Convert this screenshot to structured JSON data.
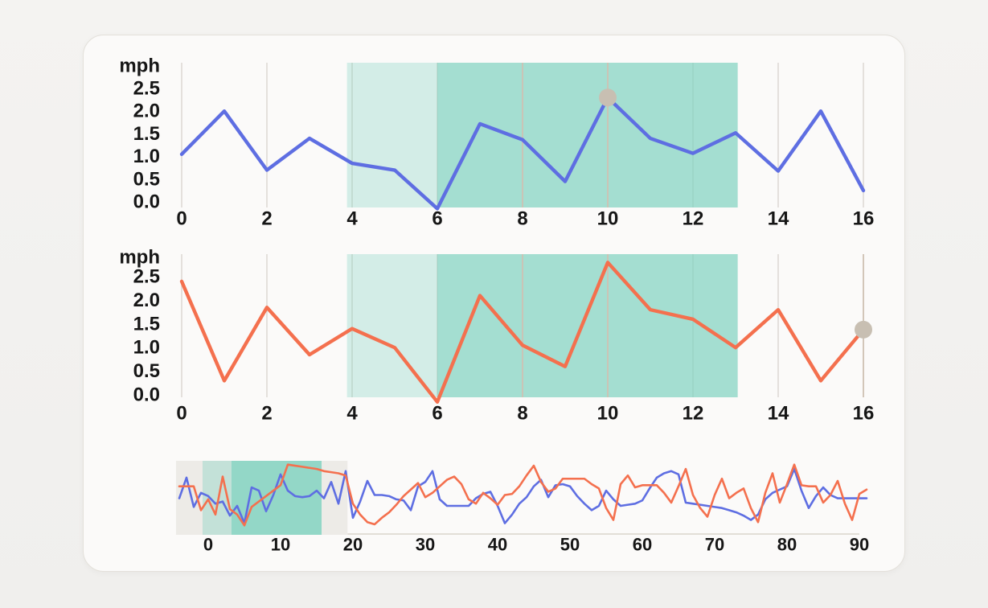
{
  "page": {
    "background": "#f1f0ee",
    "card_background": "#fbfaf9",
    "card_border": "#e3e0da"
  },
  "colors": {
    "blue": "#5e6ee2",
    "orange": "#f4704e",
    "band_teal_rgb": "127,210,192",
    "gridline": "#dcd8d2",
    "emphasis_line": "#cfc2b4",
    "marker_dot": "#c8bfb2",
    "brush_window": "#edebe7",
    "axis_line": "#d9d4cc",
    "text": "#161616"
  },
  "chart_data": [
    {
      "id": "speed-chart-1",
      "type": "line",
      "unit_label": "mph",
      "y_ticks": [
        "2.5",
        "2.0",
        "1.5",
        "1.0",
        "0.5",
        "0.0"
      ],
      "x_ticks": [
        0,
        2,
        4,
        6,
        8,
        10,
        12,
        14,
        16
      ],
      "ylim": [
        0,
        3
      ],
      "grid": "vertical",
      "x_start": 0,
      "series": [
        {
          "name": "speed-blue",
          "color_key": "blue",
          "values": [
            1.05,
            2.0,
            0.7,
            1.4,
            0.85,
            0.7,
            -0.15,
            1.72,
            1.37,
            0.45,
            2.3,
            1.4,
            1.07,
            1.52,
            0.68,
            2.0,
            0.25
          ]
        }
      ],
      "highlight_bands": [
        {
          "kind": "light",
          "from": 3.88,
          "to": 6.0,
          "opacity": 0.32
        },
        {
          "kind": "dark",
          "from": 6.0,
          "to": 13.05,
          "opacity": 0.7
        }
      ],
      "emphasis_gridlines": [
        8,
        10
      ],
      "marker": {
        "x": 10,
        "value": 2.3
      }
    },
    {
      "id": "speed-chart-2",
      "type": "line",
      "unit_label": "mph",
      "y_ticks": [
        "2.5",
        "2.0",
        "1.5",
        "1.0",
        "0.5",
        "0.0"
      ],
      "x_ticks": [
        0,
        2,
        4,
        6,
        8,
        10,
        12,
        14,
        16
      ],
      "ylim": [
        0,
        3
      ],
      "grid": "vertical",
      "x_start": 0,
      "series": [
        {
          "name": "speed-orange",
          "color_key": "orange",
          "values": [
            2.4,
            0.3,
            1.85,
            0.85,
            1.4,
            1.0,
            -0.15,
            2.1,
            1.05,
            0.6,
            2.8,
            1.8,
            1.6,
            1.0,
            1.8,
            0.3,
            1.38
          ]
        }
      ],
      "highlight_bands": [
        {
          "kind": "light",
          "from": 3.88,
          "to": 6.0,
          "opacity": 0.32
        },
        {
          "kind": "dark",
          "from": 6.0,
          "to": 13.05,
          "opacity": 0.7
        }
      ],
      "emphasis_gridlines": [
        8,
        10,
        16
      ],
      "marker": {
        "x": 16,
        "value": 1.38
      }
    },
    {
      "id": "overview-chart",
      "type": "line",
      "x_ticks": [
        0,
        10,
        20,
        30,
        40,
        50,
        60,
        70,
        80,
        90
      ],
      "ylim": [
        0,
        3
      ],
      "x_start": -4,
      "brush_window": {
        "from": -4.45,
        "to": 19.25
      },
      "highlight_bands": [
        {
          "kind": "light",
          "from": -0.78,
          "to": 3.22,
          "opacity": 0.38
        },
        {
          "kind": "dark",
          "from": 3.22,
          "to": 15.67,
          "opacity": 0.82
        }
      ],
      "series": [
        {
          "name": "overview-blue",
          "color_key": "blue",
          "values": [
            1.35,
            2.3,
            0.95,
            1.6,
            1.45,
            1.1,
            1.2,
            0.55,
            1.0,
            0.2,
            1.85,
            1.7,
            0.75,
            1.5,
            2.45,
            1.7,
            1.45,
            1.4,
            1.45,
            1.7,
            1.35,
            2.1,
            1.1,
            2.6,
            0.45,
            1.2,
            2.15,
            1.5,
            1.5,
            1.45,
            1.3,
            1.25,
            0.8,
            1.9,
            2.1,
            2.6,
            1.3,
            1.0,
            1.0,
            1.0,
            1.0,
            1.35,
            1.55,
            1.65,
            1.0,
            0.2,
            0.6,
            1.1,
            1.4,
            1.9,
            2.2,
            1.4,
            1.95,
            2.0,
            1.9,
            1.45,
            1.1,
            0.8,
            1.0,
            1.7,
            1.3,
            1.0,
            1.05,
            1.1,
            1.25,
            1.8,
            2.3,
            2.5,
            2.6,
            2.45,
            1.15,
            1.1,
            1.05,
            1.0,
            0.95,
            0.9,
            0.8,
            0.7,
            0.55,
            0.35,
            0.6,
            1.3,
            1.6,
            1.75,
            1.9,
            2.7,
            1.7,
            0.9,
            1.45,
            1.85,
            1.5,
            1.35,
            1.35,
            1.35,
            1.35,
            1.35
          ]
        },
        {
          "name": "overview-orange",
          "color_key": "orange",
          "values": [
            1.9,
            1.9,
            1.9,
            0.8,
            1.3,
            0.6,
            2.35,
            0.85,
            0.6,
            0.1,
            0.95,
            1.2,
            1.45,
            1.7,
            1.95,
            2.9,
            2.85,
            2.8,
            2.75,
            2.7,
            2.6,
            2.55,
            2.5,
            2.4,
            1.1,
            0.6,
            0.25,
            0.15,
            0.45,
            0.7,
            1.05,
            1.45,
            1.75,
            2.05,
            1.4,
            1.6,
            1.9,
            2.2,
            2.35,
            2.0,
            1.3,
            1.1,
            1.6,
            1.35,
            1.05,
            1.5,
            1.55,
            1.9,
            2.4,
            2.85,
            2.1,
            1.65,
            1.8,
            2.25,
            2.25,
            2.25,
            2.25,
            2.0,
            1.8,
            0.9,
            0.35,
            2.0,
            2.4,
            1.85,
            1.95,
            1.95,
            1.95,
            1.6,
            1.15,
            1.9,
            2.7,
            1.5,
            0.9,
            0.5,
            1.5,
            2.25,
            1.35,
            1.6,
            1.8,
            0.9,
            0.25,
            1.6,
            2.5,
            1.15,
            2.0,
            2.9,
            1.95,
            1.9,
            1.9,
            1.15,
            1.5,
            2.15,
            1.1,
            0.35,
            1.55,
            1.75
          ]
        }
      ]
    }
  ]
}
